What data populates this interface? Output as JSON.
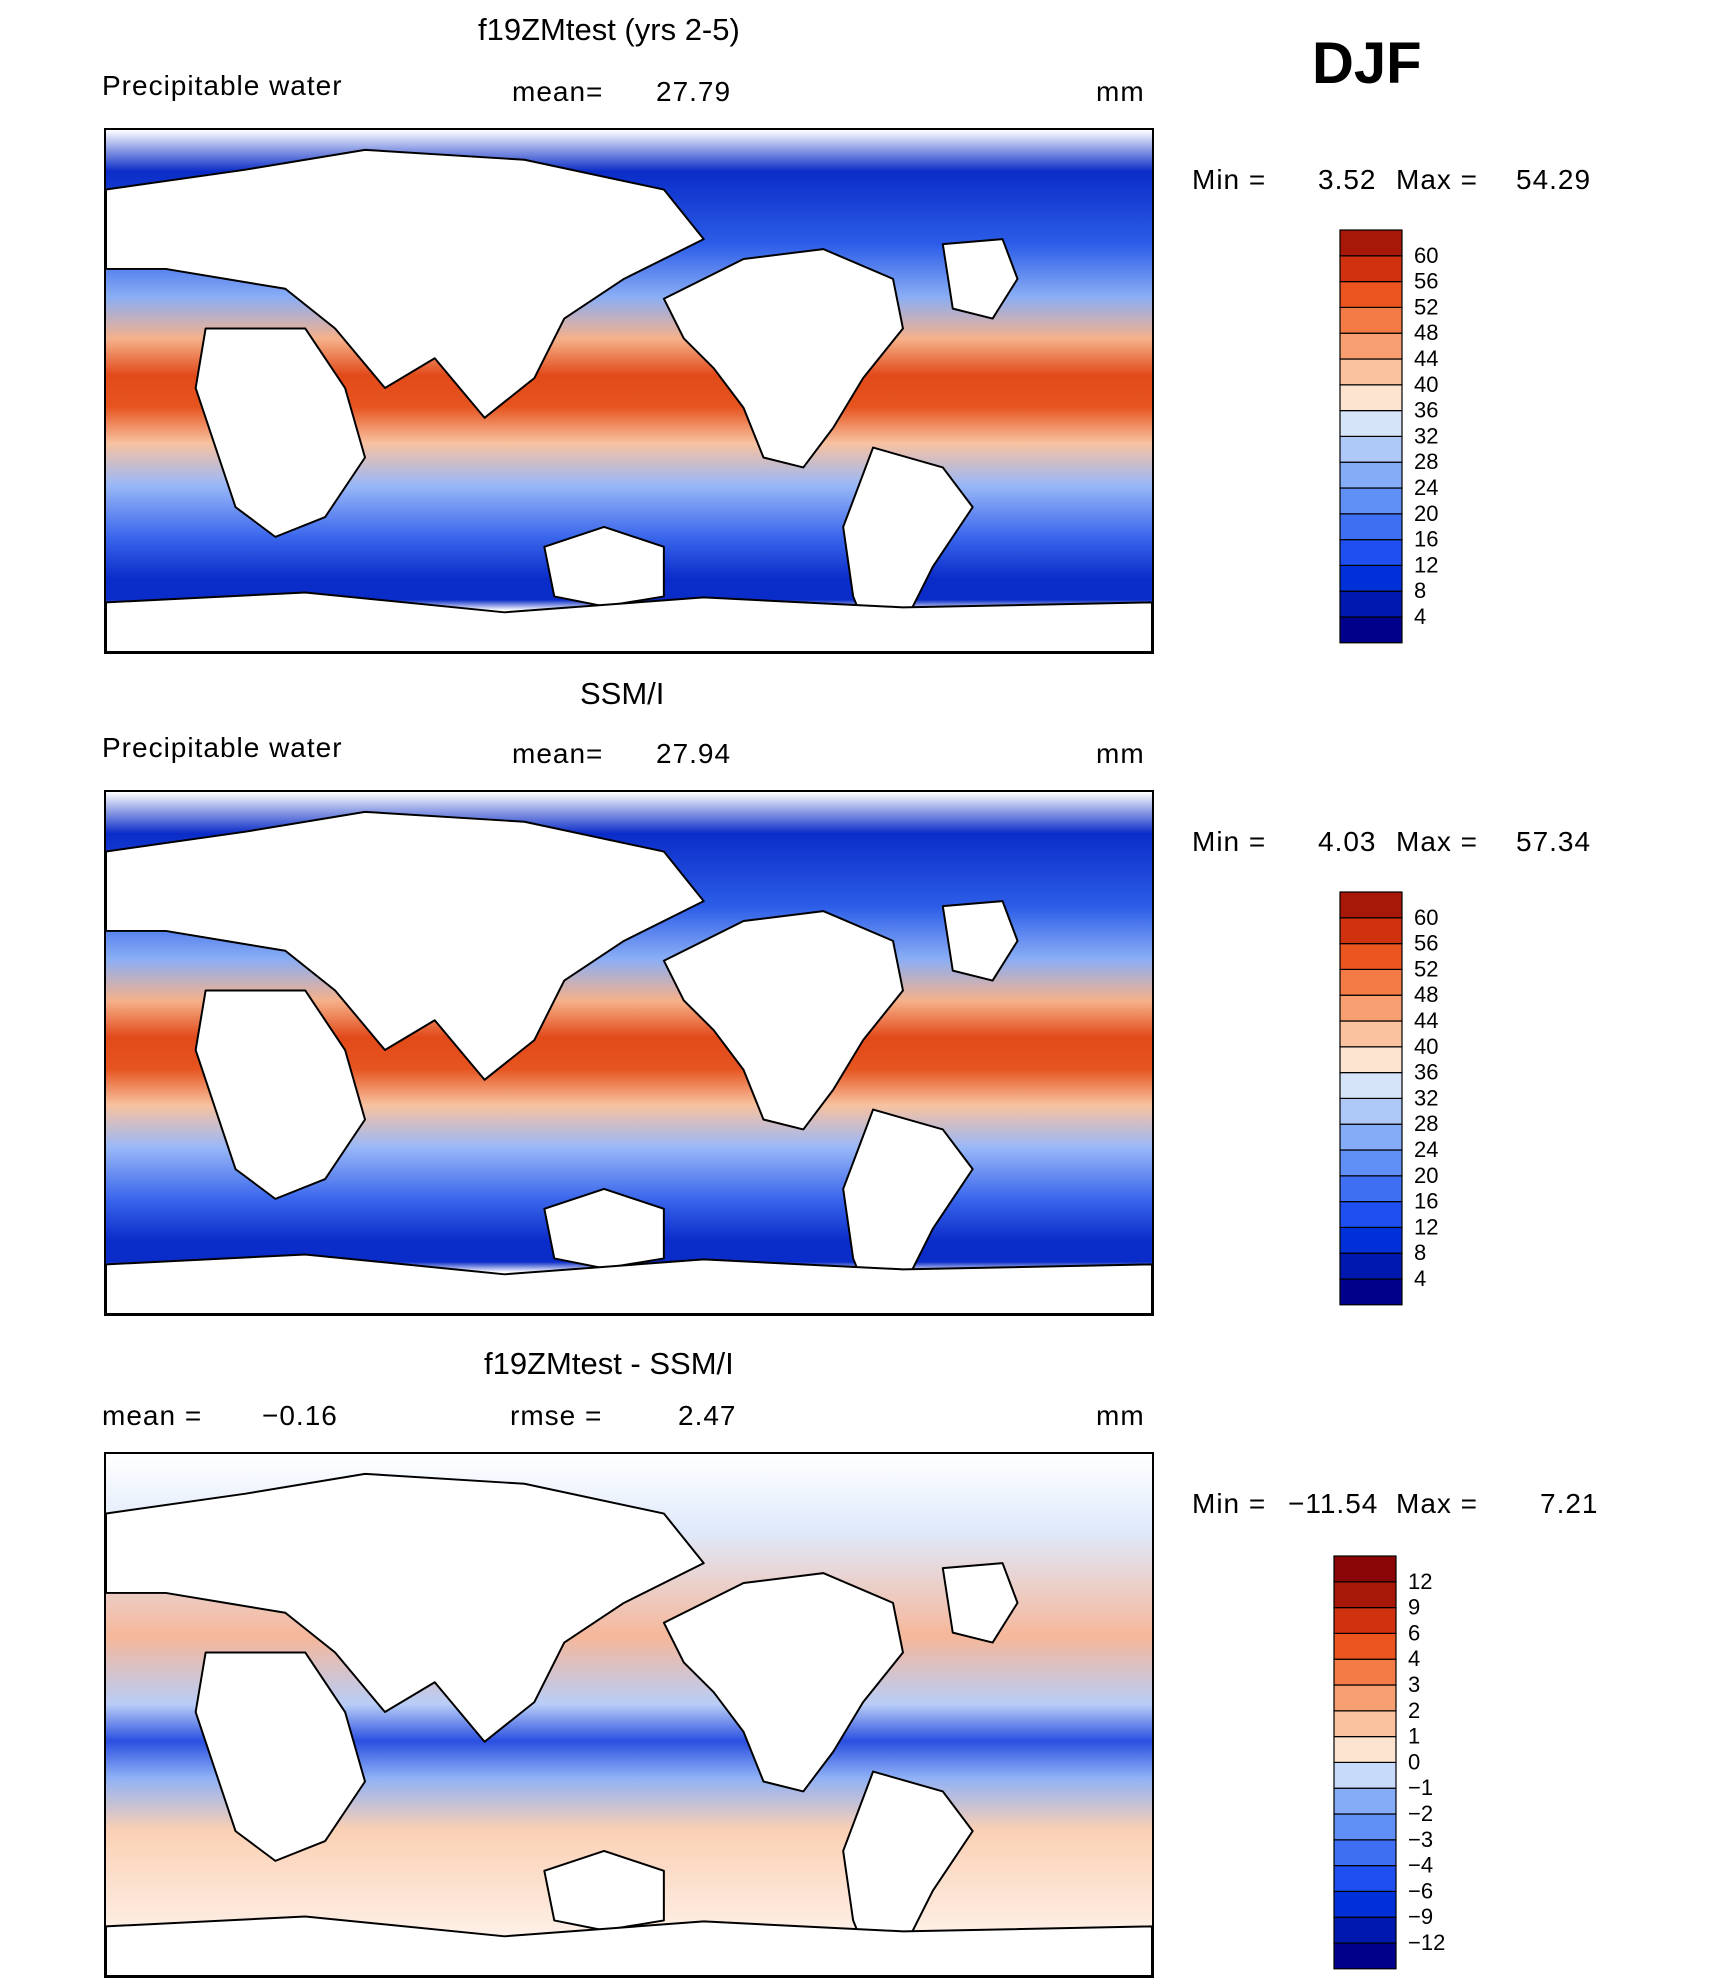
{
  "season": "DJF",
  "panels": [
    {
      "title": "f19ZMtest (yrs 2-5)",
      "left_label": "Precipitable water",
      "center_label": "mean=",
      "center_value": "27.79",
      "units": "mm",
      "min_label": "Min =",
      "min_value": "3.52",
      "max_label": "Max =",
      "max_value": "54.29",
      "variant": "model"
    },
    {
      "title": "SSM/I",
      "left_label": "Precipitable water",
      "center_label": "mean=",
      "center_value": "27.94",
      "units": "mm",
      "min_label": "Min =",
      "min_value": "4.03",
      "max_label": "Max =",
      "max_value": "57.34",
      "variant": "obs"
    },
    {
      "title": "f19ZMtest - SSM/I",
      "left_label": "mean =",
      "left_value": "−0.16",
      "center_label": "rmse =",
      "center_value": "2.47",
      "units": "mm",
      "min_label": "Min =",
      "min_value": "−11.54",
      "max_label": "Max =",
      "max_value": "7.21",
      "variant": "diff"
    }
  ],
  "chart_data": [
    {
      "type": "heatmap",
      "title": "f19ZMtest (yrs 2-5)",
      "variable": "Precipitable water",
      "units": "mm",
      "mean": 27.79,
      "min": 3.52,
      "max": 54.29,
      "colorbar_levels": [
        4,
        8,
        12,
        16,
        20,
        24,
        28,
        32,
        36,
        40,
        44,
        48,
        52,
        56,
        60
      ],
      "colorbar_colors": [
        "#00008b",
        "#0018b0",
        "#0030d8",
        "#1f4ff0",
        "#3e6ef2",
        "#6090f5",
        "#85acf7",
        "#aec8f8",
        "#d6e4fa",
        "#fde4d0",
        "#fbc2a0",
        "#f89f72",
        "#f47a46",
        "#ec5420",
        "#d03210",
        "#a81808"
      ]
    },
    {
      "type": "heatmap",
      "title": "SSM/I",
      "variable": "Precipitable water",
      "units": "mm",
      "mean": 27.94,
      "min": 4.03,
      "max": 57.34,
      "colorbar_levels": [
        4,
        8,
        12,
        16,
        20,
        24,
        28,
        32,
        36,
        40,
        44,
        48,
        52,
        56,
        60
      ],
      "colorbar_colors": [
        "#00008b",
        "#0018b0",
        "#0030d8",
        "#1f4ff0",
        "#3e6ef2",
        "#6090f5",
        "#85acf7",
        "#aec8f8",
        "#d6e4fa",
        "#fde4d0",
        "#fbc2a0",
        "#f89f72",
        "#f47a46",
        "#ec5420",
        "#d03210",
        "#a81808"
      ]
    },
    {
      "type": "heatmap",
      "title": "f19ZMtest - SSM/I",
      "units": "mm",
      "mean": -0.16,
      "rmse": 2.47,
      "min": -11.54,
      "max": 7.21,
      "colorbar_levels": [
        "−12",
        "−9",
        "−6",
        "−4",
        "−3",
        "−2",
        "−1",
        "0",
        "1",
        "2",
        "3",
        "4",
        "6",
        "9",
        "12"
      ],
      "colorbar_colors": [
        "#00008b",
        "#0018b0",
        "#0030d8",
        "#1f4ff0",
        "#3e6ef2",
        "#6090f5",
        "#85acf7",
        "#c8dafa",
        "#fde4d0",
        "#fbc2a0",
        "#f89f72",
        "#f47a46",
        "#ec5420",
        "#d03210",
        "#a81808",
        "#8a0606"
      ]
    }
  ]
}
